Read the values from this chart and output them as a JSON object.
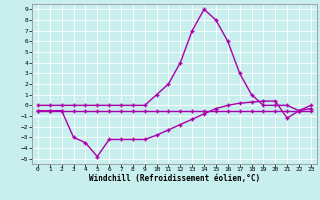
{
  "xlabel": "Windchill (Refroidissement éolien,°C)",
  "bg_color": "#c8eeee",
  "line_color": "#aa00aa",
  "grid_color": "#aadddd",
  "xlim_min": -0.5,
  "xlim_max": 23.5,
  "ylim_min": -5.5,
  "ylim_max": 9.5,
  "xticks": [
    0,
    1,
    2,
    3,
    4,
    5,
    6,
    7,
    8,
    9,
    10,
    11,
    12,
    13,
    14,
    15,
    16,
    17,
    18,
    19,
    20,
    21,
    22,
    23
  ],
  "yticks": [
    -5,
    -4,
    -3,
    -2,
    -1,
    0,
    1,
    2,
    3,
    4,
    5,
    6,
    7,
    8,
    9
  ],
  "line1_x": [
    0,
    1,
    2,
    3,
    4,
    5,
    6,
    7,
    8,
    9,
    10,
    11,
    12,
    13,
    14,
    15,
    16,
    17,
    18,
    19,
    20,
    21,
    22,
    23
  ],
  "line1_y": [
    0,
    0,
    0,
    0,
    0,
    0,
    0,
    0,
    0,
    0,
    1,
    2,
    4,
    7,
    9,
    8,
    6,
    3,
    1,
    0,
    0,
    0,
    -0.5,
    0
  ],
  "line2_x": [
    0,
    1,
    2,
    3,
    4,
    5,
    6,
    7,
    8,
    9,
    10,
    11,
    12,
    13,
    14,
    15,
    16,
    17,
    18,
    19,
    20,
    21,
    22,
    23
  ],
  "line2_y": [
    -0.5,
    -0.5,
    -0.5,
    -0.5,
    -0.5,
    -0.5,
    -0.5,
    -0.5,
    -0.5,
    -0.5,
    -0.5,
    -0.5,
    -0.5,
    -0.5,
    -0.5,
    -0.5,
    -0.5,
    -0.5,
    -0.5,
    -0.5,
    -0.5,
    -0.5,
    -0.5,
    -0.5
  ],
  "line3_x": [
    0,
    1,
    2,
    3,
    4,
    5,
    6,
    7,
    8,
    9,
    10,
    11,
    12,
    13,
    14,
    15,
    16,
    17,
    18,
    19,
    20,
    21,
    22,
    23
  ],
  "line3_y": [
    -0.5,
    -0.5,
    -0.5,
    -3,
    -3.5,
    -4.8,
    -3.2,
    -3.2,
    -3.2,
    -3.2,
    -2.8,
    -2.3,
    -1.8,
    -1.3,
    -0.8,
    -0.3,
    0,
    0.2,
    0.3,
    0.4,
    0.4,
    -1.2,
    -0.5,
    -0.3
  ]
}
